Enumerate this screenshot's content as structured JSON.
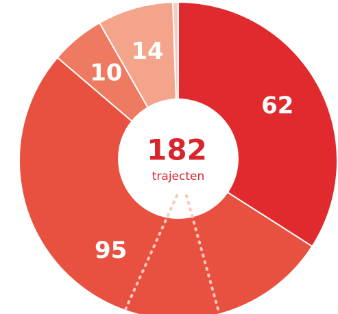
{
  "chart_data": {
    "type": "donut",
    "values": [
      62,
      95,
      10,
      14,
      1
    ],
    "colors": [
      "#e12a2d",
      "#e8513f",
      "#ee7a62",
      "#f4a48a",
      "#f7cdbd"
    ],
    "total": 182,
    "total_label": "trajecten"
  }
}
